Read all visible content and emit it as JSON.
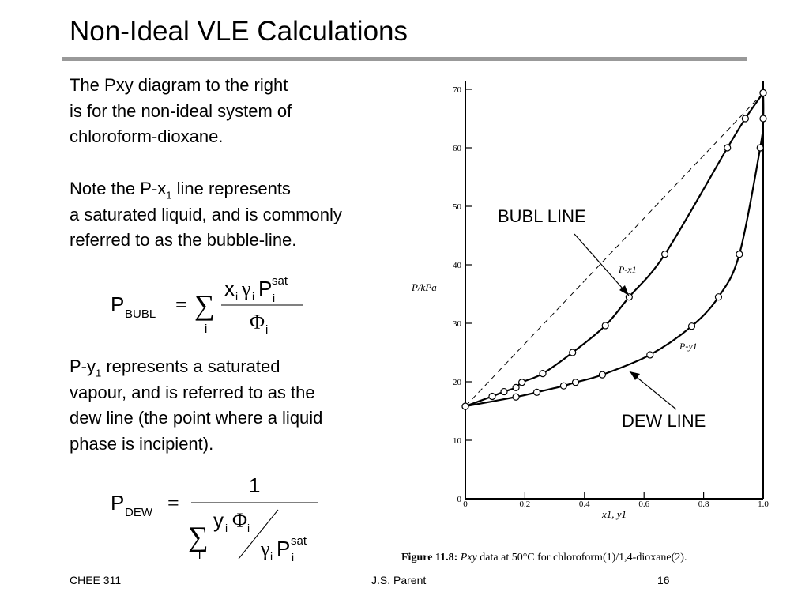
{
  "slide": {
    "title": "Non-Ideal VLE Calculations",
    "para1": [
      "The Pxy diagram to the right",
      "is for the non-ideal system of",
      "chloroform-dioxane."
    ],
    "para2": {
      "line1_pre": "Note the P-x",
      "line1_sub": "1",
      "line1_post": " line represents",
      "line2": "a saturated liquid, and is commonly",
      "line3": "referred to as the bubble-line."
    },
    "para3": {
      "line1_pre": "P-y",
      "line1_sub": "1",
      "line1_post": " represents a saturated",
      "line2": "vapour, and is referred to as the",
      "line3": "dew line (the point where a liquid",
      "line4": "phase is incipient)."
    },
    "eq_bubl": {
      "lhs_P": "P",
      "lhs_sub": "BUBL",
      "equals": "=",
      "sum": "∑",
      "sum_index": "i",
      "num_x": "x",
      "num_x_sub": "i",
      "num_gamma": "γ",
      "num_gamma_sub": "i",
      "num_P": "P",
      "num_P_sup": "sat",
      "num_P_sub": "i",
      "den_phi": "Φ",
      "den_phi_sub": "i"
    },
    "eq_dew": {
      "lhs_P": "P",
      "lhs_sub": "DEW",
      "equals": "=",
      "numerator": "1",
      "sum": "∑",
      "sum_index": "i",
      "y": "y",
      "y_sub": "i",
      "phi": "Φ",
      "phi_sub": "i",
      "gamma": "γ",
      "gamma_sub": "i",
      "P": "P",
      "P_sup": "sat",
      "P_sub": "i"
    },
    "labels": {
      "bubl": "BUBL LINE",
      "dew": "DEW LINE"
    },
    "caption": {
      "bold": "Figure 11.8:",
      "italic": "Pxy",
      "text": " data at 50°C for chloroform(1)/1,4-dioxane(2)."
    },
    "footer": {
      "course": "CHEE 311",
      "author": "J.S. Parent",
      "page": "16"
    }
  },
  "chart_data": {
    "type": "line",
    "xlabel": "x1, y1",
    "ylabel": "P/kPa",
    "xlim": [
      0,
      1.0
    ],
    "ylim": [
      0,
      70
    ],
    "x_ticks": [
      "0",
      "0.2",
      "0.4",
      "0.6",
      "0.8",
      "1.0"
    ],
    "y_ticks": [
      "0",
      "10",
      "20",
      "30",
      "40",
      "50",
      "60",
      "70"
    ],
    "curve_labels": {
      "liquid": "P-x1",
      "vapour": "P-y1"
    },
    "series": [
      {
        "key": "P-x1",
        "points": [
          [
            0.0,
            15.8
          ],
          [
            0.09,
            17.5
          ],
          [
            0.13,
            18.3
          ],
          [
            0.17,
            19.0
          ],
          [
            0.19,
            19.9
          ],
          [
            0.26,
            21.4
          ],
          [
            0.36,
            25.0
          ],
          [
            0.47,
            29.6
          ],
          [
            0.55,
            34.5
          ],
          [
            0.67,
            41.8
          ],
          [
            0.88,
            60.0
          ],
          [
            0.94,
            65.0
          ],
          [
            1.0,
            69.4
          ]
        ]
      },
      {
        "key": "P-y1",
        "points": [
          [
            0.0,
            15.8
          ],
          [
            0.17,
            17.4
          ],
          [
            0.24,
            18.2
          ],
          [
            0.33,
            19.3
          ],
          [
            0.37,
            19.9
          ],
          [
            0.46,
            21.2
          ],
          [
            0.62,
            24.6
          ],
          [
            0.76,
            29.5
          ],
          [
            0.85,
            34.5
          ],
          [
            0.92,
            41.8
          ],
          [
            0.99,
            60.0
          ],
          [
            1.0,
            65.0
          ],
          [
            1.0,
            69.4
          ]
        ]
      },
      {
        "key": "ideal-raoult",
        "points": [
          [
            0.0,
            15.8
          ],
          [
            1.0,
            69.4
          ]
        ]
      }
    ]
  }
}
